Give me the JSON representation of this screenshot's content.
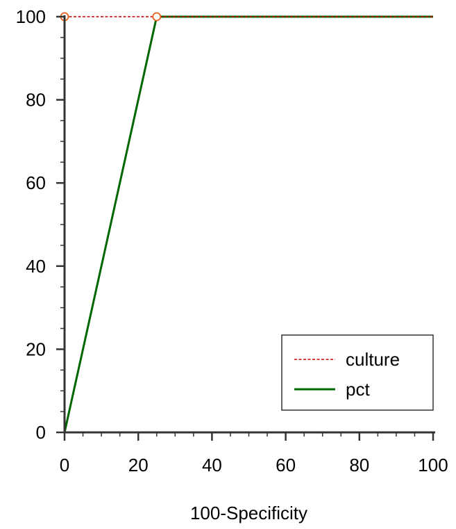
{
  "chart_data": {
    "type": "line",
    "title": "",
    "xlabel": "100-Specificity",
    "ylabel": "",
    "xlim": [
      0,
      100
    ],
    "ylim": [
      0,
      100
    ],
    "x_ticks": [
      0,
      20,
      40,
      60,
      80,
      100
    ],
    "y_ticks": [
      0,
      20,
      40,
      60,
      80,
      100
    ],
    "x_tick_labels": [
      "0",
      "20",
      "40",
      "60",
      "80",
      "100"
    ],
    "y_tick_labels": [
      "0",
      "20",
      "40",
      "60",
      "80",
      "100"
    ],
    "grid": false,
    "legend_position": "bottom-right",
    "series": [
      {
        "name": "culture",
        "style": "dashed",
        "color": "#cc0000",
        "x": [
          0,
          0,
          0,
          25,
          100
        ],
        "y": [
          0,
          100,
          100,
          100,
          100
        ],
        "markers": [
          {
            "x": 0,
            "y": 100
          },
          {
            "x": 25,
            "y": 100
          }
        ],
        "marker_color": "#e8601c"
      },
      {
        "name": "pct",
        "style": "solid",
        "color": "#006600",
        "x": [
          0,
          25,
          100
        ],
        "y": [
          0,
          100,
          100
        ]
      }
    ]
  }
}
